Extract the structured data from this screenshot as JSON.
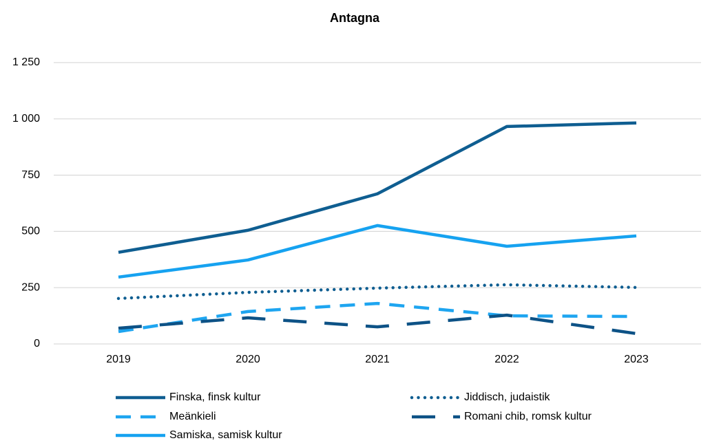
{
  "chart_data": {
    "type": "line",
    "title": "Antagna",
    "categories": [
      "2019",
      "2020",
      "2021",
      "2022",
      "2023"
    ],
    "series": [
      {
        "name": "Finska, finsk kultur",
        "color": "#0f5e91",
        "dash": "solid",
        "values": [
          407,
          505,
          667,
          966,
          982
        ]
      },
      {
        "name": "Meänkieli",
        "color": "#1ea5f0",
        "dash": "dash",
        "values": [
          55,
          144,
          180,
          125,
          122
        ]
      },
      {
        "name": "Samiska, samisk kultur",
        "color": "#16a2f0",
        "dash": "solid",
        "values": [
          297,
          373,
          526,
          434,
          480
        ]
      },
      {
        "name": "Jiddisch, judaistik",
        "color": "#0f5e91",
        "dash": "dot",
        "values": [
          202,
          229,
          248,
          263,
          251
        ]
      },
      {
        "name": "Romani chib, romsk kultur",
        "color": "#0d5286",
        "dash": "longdash",
        "values": [
          70,
          116,
          76,
          128,
          46
        ]
      }
    ],
    "ylim": [
      0,
      1250
    ],
    "yticks": [
      0,
      250,
      500,
      750,
      {
        "value": 1000,
        "label": "1 000"
      },
      {
        "value": 1250,
        "label": "1 250"
      }
    ],
    "grid": true,
    "legend": "bottom"
  }
}
